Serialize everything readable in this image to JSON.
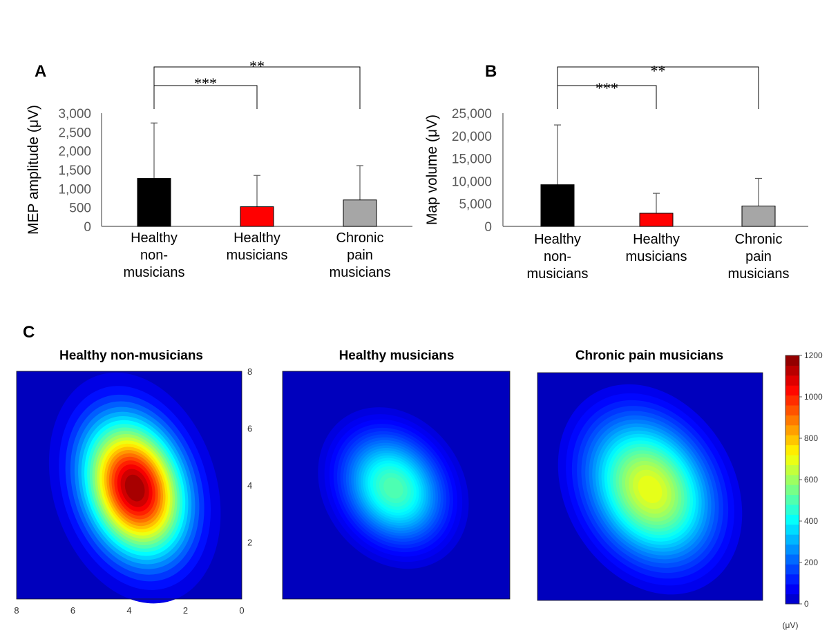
{
  "chart_data": [
    {
      "panel": "A",
      "type": "bar",
      "ylabel": "MEP amplitude (μV)",
      "categories": [
        [
          "Healthy",
          "non-",
          "musicians"
        ],
        [
          "Healthy",
          "musicians"
        ],
        [
          "Chronic",
          "pain",
          "musicians"
        ]
      ],
      "values": [
        1270,
        520,
        700
      ],
      "errors": [
        1470,
        830,
        910
      ],
      "colors": [
        "#000000",
        "#ff0000",
        "#a6a6a6"
      ],
      "ylim": [
        0,
        3000
      ],
      "yticks": [
        0,
        500,
        1000,
        1500,
        2000,
        2500,
        3000
      ],
      "ytick_labels": [
        "0",
        "500",
        "1,000",
        "1,500",
        "2,000",
        "2,500",
        "3,000"
      ],
      "significance": [
        {
          "from": 0,
          "to": 1,
          "label": "***"
        },
        {
          "from": 0,
          "to": 2,
          "label": "**"
        }
      ]
    },
    {
      "panel": "B",
      "type": "bar",
      "ylabel": "Map volume (μV)",
      "categories": [
        [
          "Healthy",
          "non-",
          "musicians"
        ],
        [
          "Healthy",
          "musicians"
        ],
        [
          "Chronic",
          "pain",
          "musicians"
        ]
      ],
      "values": [
        9200,
        2900,
        4500
      ],
      "errors": [
        13200,
        4400,
        6100
      ],
      "colors": [
        "#000000",
        "#ff0000",
        "#a6a6a6"
      ],
      "ylim": [
        0,
        25000
      ],
      "yticks": [
        0,
        5000,
        10000,
        15000,
        20000,
        25000
      ],
      "ytick_labels": [
        "0",
        "5,000",
        "10,000",
        "15,000",
        "20,000",
        "25,000"
      ],
      "significance": [
        {
          "from": 0,
          "to": 1,
          "label": "***"
        },
        {
          "from": 0,
          "to": 2,
          "label": "**"
        }
      ]
    },
    {
      "panel": "C",
      "type": "heatmap",
      "maps": [
        {
          "title": "Healthy non-musicians",
          "peak": 1200,
          "center": [
            3.8,
            3.9
          ],
          "sigma": [
            1.15,
            1.65
          ],
          "rotation_deg": -18
        },
        {
          "title": "Healthy musicians",
          "peak": 520,
          "center": [
            4.1,
            3.9
          ],
          "sigma": [
            1.1,
            1.35
          ],
          "rotation_deg": -35
        },
        {
          "title": "Chronic pain musicians",
          "peak": 720,
          "center": [
            4.0,
            3.9
          ],
          "sigma": [
            1.35,
            1.75
          ],
          "rotation_deg": -30
        }
      ],
      "x_ticks": [
        8,
        6,
        4,
        2,
        0
      ],
      "y_ticks": [
        2,
        4,
        6,
        8
      ],
      "xlim": [
        8,
        0
      ],
      "ylim": [
        0,
        8
      ],
      "colorbar": {
        "min": 0,
        "max": 1200,
        "ticks": [
          0,
          200,
          400,
          600,
          800,
          1000,
          1200
        ],
        "unit": "(μV)"
      }
    }
  ],
  "panel_labels": {
    "a": "A",
    "b": "B",
    "c": "C"
  }
}
